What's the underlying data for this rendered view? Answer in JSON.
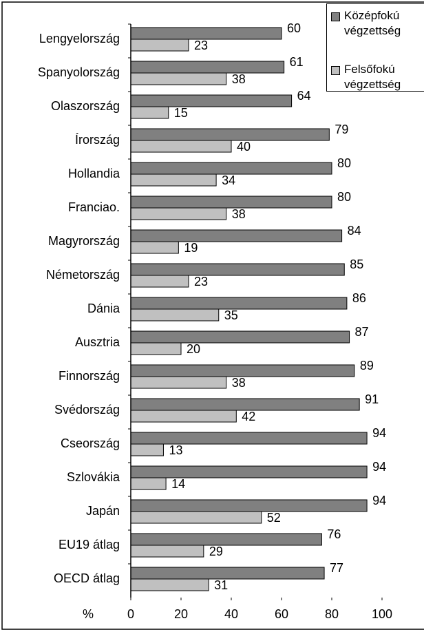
{
  "chart_data": {
    "type": "bar",
    "orientation": "horizontal",
    "categories": [
      "Lengyelország",
      "Spanyolország",
      "Olaszország",
      "Írország",
      "Hollandia",
      "Franciao.",
      "Magyrország",
      "Németország",
      "Dánia",
      "Ausztria",
      "Finnország",
      "Svédország",
      "Cseország",
      "Szlovákia",
      "Japán",
      "EU19 átlag",
      "OECD átlag"
    ],
    "series": [
      {
        "name": "Középfokú végzettség",
        "color": "#808080",
        "values": [
          60,
          61,
          64,
          79,
          80,
          80,
          84,
          85,
          86,
          87,
          89,
          91,
          94,
          94,
          94,
          76,
          77
        ]
      },
      {
        "name": "Felsőfokú végzettség",
        "color": "#c0c0c0",
        "values": [
          23,
          38,
          15,
          40,
          34,
          38,
          19,
          23,
          35,
          20,
          38,
          42,
          13,
          14,
          52,
          29,
          31
        ]
      }
    ],
    "xlabel": "%",
    "xlim": [
      0,
      100
    ],
    "xticks": [
      0,
      20,
      40,
      60,
      80,
      100
    ],
    "grid": false,
    "legend": "top-right"
  }
}
